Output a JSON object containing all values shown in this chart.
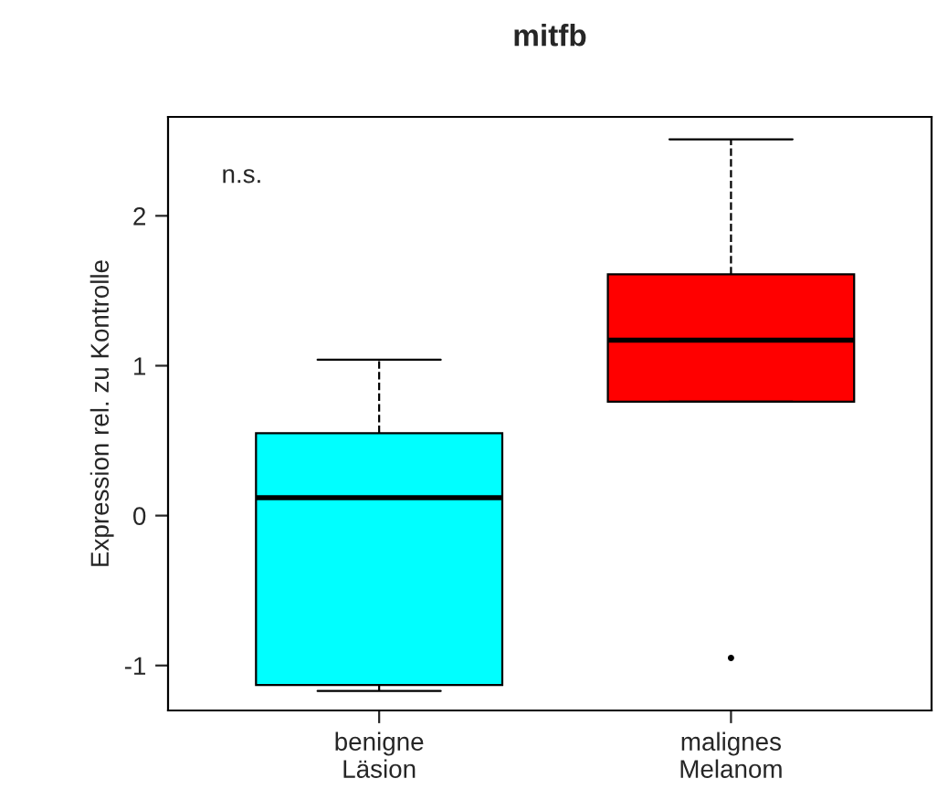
{
  "chart_data": {
    "type": "box",
    "title": "mitfb",
    "ylabel": "Expression rel. zu Kontrolle",
    "categories": [
      "benigne\nLäsion",
      "malignes\nMelanom"
    ],
    "boxes": [
      {
        "low": -1.17,
        "q1": -1.13,
        "median": 0.12,
        "q3": 0.55,
        "high": 1.04
      },
      {
        "low": 0.76,
        "q1": 0.76,
        "median": 1.17,
        "q3": 1.61,
        "high": 2.51,
        "outliers": [
          -0.95
        ]
      }
    ],
    "colors": [
      "#00ffff",
      "#ff0000"
    ],
    "ylim": [
      -1.3,
      2.66
    ],
    "yticks": [
      -1,
      0,
      1,
      2
    ],
    "grid": false,
    "annotations": [
      "n.s."
    ]
  }
}
